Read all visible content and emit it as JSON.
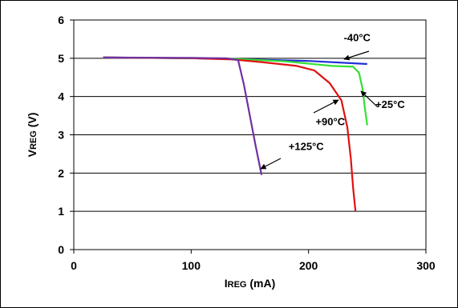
{
  "chart_data": {
    "type": "line",
    "xlabel": "IREG (mA)",
    "ylabel": "VREG (V)",
    "xlim": [
      0,
      300
    ],
    "ylim": [
      0,
      6
    ],
    "xticks": [
      0,
      100,
      200,
      300
    ],
    "yticks": [
      0,
      1,
      2,
      3,
      4,
      5,
      6
    ],
    "grid": "horizontal",
    "legend": "none",
    "series": [
      {
        "name": "-40°C",
        "color": "#1f2fd6",
        "points": [
          [
            25,
            5.02
          ],
          [
            100,
            5.0
          ],
          [
            150,
            4.97
          ],
          [
            200,
            4.93
          ],
          [
            250,
            4.85
          ]
        ]
      },
      {
        "name": "+25°C",
        "color": "#33e033",
        "points": [
          [
            25,
            5.02
          ],
          [
            100,
            5.0
          ],
          [
            140,
            4.98
          ],
          [
            180,
            4.92
          ],
          [
            220,
            4.8
          ],
          [
            238,
            4.78
          ],
          [
            243,
            4.62
          ],
          [
            246,
            4.2
          ],
          [
            248,
            3.7
          ],
          [
            250,
            3.25
          ]
        ]
      },
      {
        "name": "+90°C",
        "color": "#e01010",
        "points": [
          [
            25,
            5.02
          ],
          [
            100,
            5.0
          ],
          [
            135,
            4.97
          ],
          [
            160,
            4.9
          ],
          [
            190,
            4.8
          ],
          [
            205,
            4.68
          ],
          [
            218,
            4.35
          ],
          [
            228,
            3.9
          ],
          [
            233,
            3.2
          ],
          [
            236,
            2.4
          ],
          [
            238,
            1.6
          ],
          [
            240,
            1.0
          ]
        ]
      },
      {
        "name": "+125°C",
        "color": "#7030a0",
        "points": [
          [
            25,
            5.02
          ],
          [
            100,
            5.01
          ],
          [
            130,
            5.0
          ],
          [
            140,
            4.95
          ],
          [
            145,
            4.3
          ],
          [
            150,
            3.5
          ],
          [
            155,
            2.7
          ],
          [
            160,
            1.95
          ]
        ]
      }
    ],
    "annotations": [
      {
        "text": "-40°C",
        "x": 230,
        "y": 5.45
      },
      {
        "text": "+25°C",
        "x": 257,
        "y": 3.7
      },
      {
        "text": "+90°C",
        "x": 206,
        "y": 3.25
      },
      {
        "text": "+125°C",
        "x": 183,
        "y": 2.6
      }
    ]
  }
}
